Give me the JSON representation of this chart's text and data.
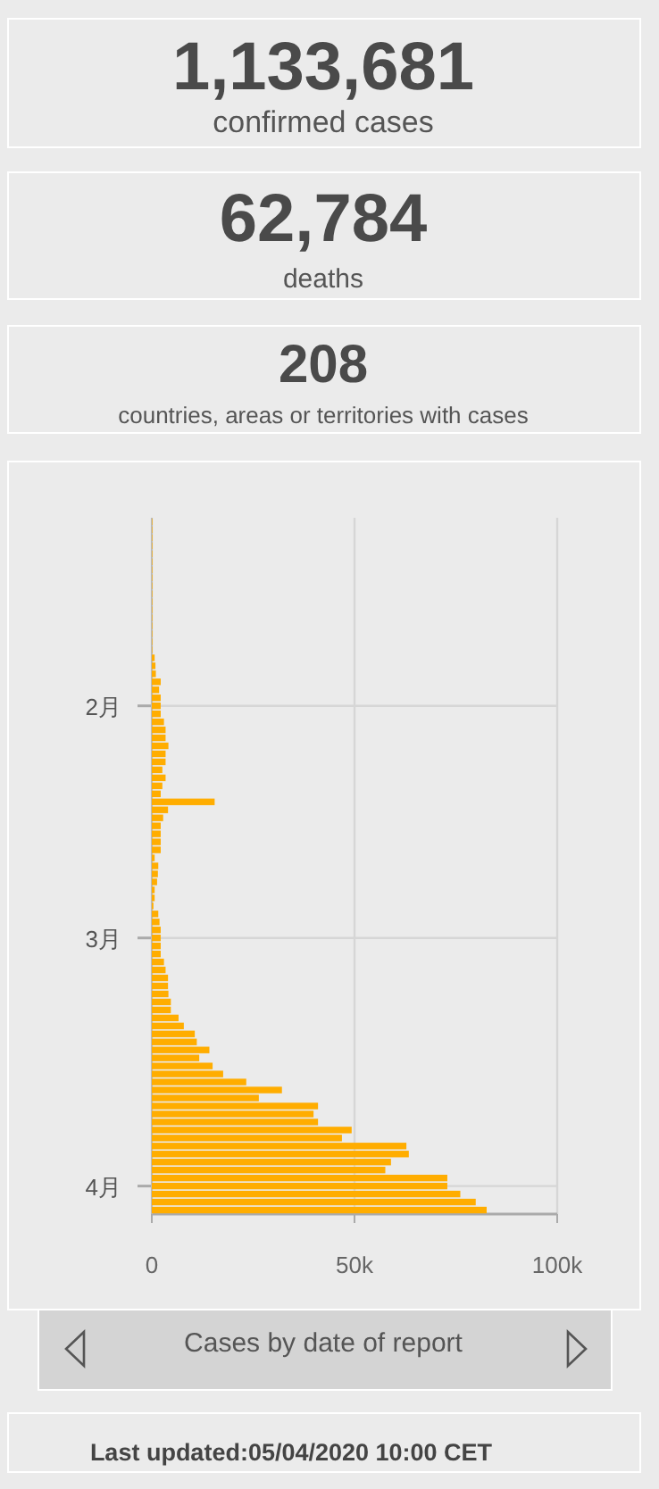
{
  "chart_data": [
    {
      "type": "other",
      "title": "1,133,681",
      "subtitle": "confirmed cases"
    },
    {
      "type": "other",
      "title": "62,784",
      "subtitle": "deaths"
    },
    {
      "type": "other",
      "title": "208",
      "subtitle": "countries, areas or territories with cases"
    },
    {
      "type": "bar",
      "orientation": "horizontal",
      "title": "Cases by date of report",
      "color": "#ffad00",
      "grid": true,
      "xlim": [
        0,
        100000
      ],
      "xticks": [
        0,
        {
          "value": 50000,
          "label": "50k"
        },
        {
          "value": 100000,
          "label": "100k"
        }
      ],
      "categories": [
        null,
        null,
        null,
        null,
        null,
        null,
        null,
        null,
        null,
        null,
        null,
        null,
        null,
        null,
        null,
        null,
        null,
        null,
        null,
        null,
        null,
        null,
        null,
        "2月",
        null,
        null,
        null,
        null,
        null,
        null,
        null,
        null,
        null,
        null,
        null,
        null,
        null,
        null,
        null,
        null,
        null,
        null,
        null,
        null,
        null,
        null,
        null,
        null,
        null,
        null,
        null,
        null,
        "3月",
        null,
        null,
        null,
        null,
        null,
        null,
        null,
        null,
        null,
        null,
        null,
        null,
        null,
        null,
        null,
        null,
        null,
        null,
        null,
        null,
        null,
        null,
        null,
        null,
        null,
        null,
        null,
        null,
        null,
        null,
        "4月",
        null,
        null,
        null
      ],
      "values": [
        100,
        100,
        100,
        100,
        100,
        100,
        100,
        100,
        100,
        100,
        100,
        100,
        100,
        100,
        100,
        100,
        100,
        700,
        900,
        1000,
        2200,
        1800,
        2200,
        2200,
        2200,
        3000,
        3400,
        3400,
        4100,
        3400,
        3400,
        2600,
        3400,
        2600,
        2200,
        15500,
        4000,
        2800,
        2200,
        2200,
        2200,
        2200,
        700,
        1600,
        1500,
        1300,
        700,
        700,
        400,
        1600,
        1900,
        2200,
        2200,
        2200,
        2200,
        3000,
        3400,
        4000,
        4000,
        4100,
        4700,
        4700,
        6600,
        7900,
        10600,
        11100,
        14200,
        11700,
        15000,
        17600,
        23300,
        32100,
        26400,
        41000,
        39900,
        41000,
        49300,
        46900,
        62800,
        63400,
        59000,
        57600,
        72900,
        72900,
        76100,
        79900,
        82600
      ],
      "annotations": [
        "Last updated:05/04/2020 10:00 CET"
      ]
    }
  ]
}
